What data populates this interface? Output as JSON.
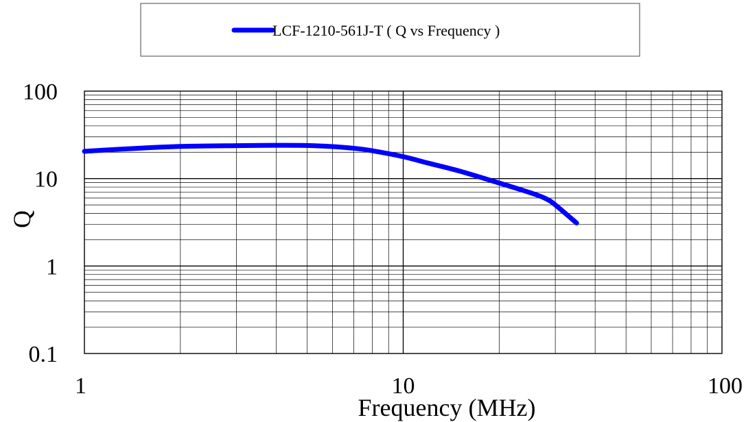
{
  "chart_data": {
    "type": "line",
    "x_scale": "log",
    "y_scale": "log",
    "xlim": [
      1,
      100
    ],
    "ylim": [
      0.1,
      100
    ],
    "xlabel": "Frequency (MHz)",
    "ylabel": "Q",
    "x_ticks": [
      "1",
      "10",
      "100"
    ],
    "y_ticks": [
      "100",
      "10",
      "1",
      "0.1"
    ],
    "grid": true,
    "legend_position": "top-center",
    "series": [
      {
        "name": "LCF-1210-561J-T ( Q vs Frequency )",
        "color": "#0000ff",
        "x": [
          1,
          1.5,
          2,
          3,
          4,
          5,
          6,
          7,
          8,
          10,
          12,
          15,
          20,
          25,
          28,
          30,
          35
        ],
        "y": [
          20.5,
          22.3,
          23.3,
          23.8,
          24.0,
          23.9,
          23.2,
          22.2,
          20.8,
          17.8,
          15.0,
          12.2,
          8.9,
          6.9,
          5.9,
          5.0,
          3.1
        ]
      }
    ]
  }
}
